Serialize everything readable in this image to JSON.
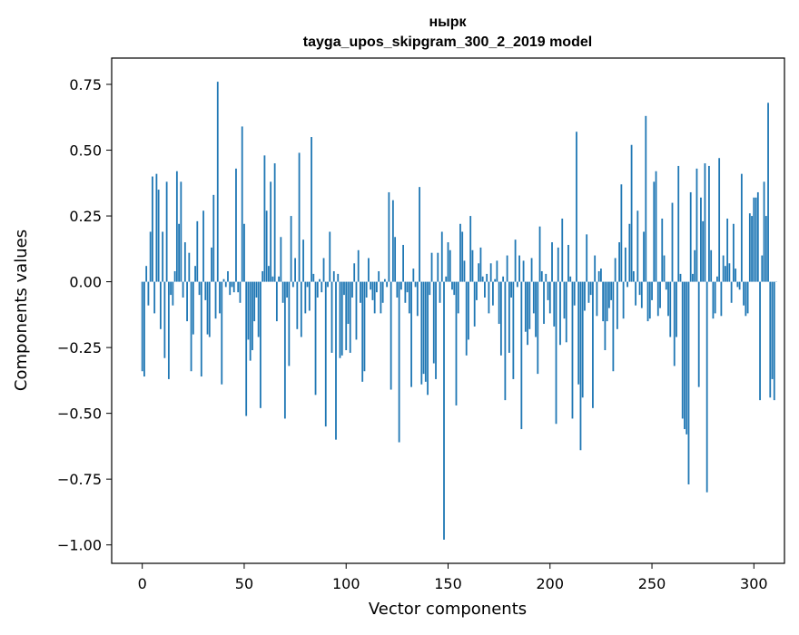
{
  "chart_data": {
    "type": "bar",
    "title": "ныркtayga_upos_skipgram_300_2_2019 model",
    "title_lines": [
      "нырк",
      "tayga_upos_skipgram_300_2_2019 model"
    ],
    "xlabel": "Vector components",
    "ylabel": "Components values",
    "xlim": [
      -15,
      315
    ],
    "ylim": [
      -1.07,
      0.85
    ],
    "x_ticks": [
      0,
      50,
      100,
      150,
      200,
      250,
      300
    ],
    "x_tick_labels": [
      "0",
      "50",
      "100",
      "150",
      "200",
      "250",
      "300"
    ],
    "y_ticks": [
      -1.0,
      -0.75,
      -0.5,
      -0.25,
      0.0,
      0.25,
      0.5,
      0.75
    ],
    "y_tick_labels": [
      "−1.00",
      "−0.75",
      "−0.50",
      "−0.25",
      "0.00",
      "0.25",
      "0.50",
      "0.75"
    ],
    "bar_color": "#1f77b4",
    "grid": false,
    "legend": "none",
    "values": [
      -0.34,
      -0.36,
      0.06,
      -0.09,
      0.19,
      0.4,
      -0.12,
      0.41,
      0.35,
      -0.18,
      0.19,
      -0.29,
      0.38,
      -0.37,
      -0.05,
      -0.09,
      0.04,
      0.42,
      0.22,
      0.38,
      -0.06,
      0.15,
      -0.15,
      0.11,
      -0.34,
      -0.2,
      0.06,
      0.23,
      -0.05,
      -0.36,
      0.27,
      -0.07,
      -0.2,
      -0.21,
      0.13,
      0.33,
      -0.14,
      0.76,
      -0.12,
      -0.39,
      0.01,
      -0.02,
      0.04,
      -0.05,
      -0.02,
      -0.04,
      0.43,
      -0.04,
      -0.08,
      0.59,
      0.22,
      -0.51,
      -0.22,
      -0.3,
      -0.26,
      -0.15,
      -0.06,
      -0.21,
      -0.48,
      0.04,
      0.48,
      0.27,
      0.06,
      0.38,
      0.02,
      0.45,
      -0.15,
      0.02,
      0.17,
      -0.08,
      -0.52,
      -0.06,
      -0.32,
      0.25,
      -0.02,
      0.09,
      -0.18,
      0.49,
      -0.21,
      0.16,
      -0.12,
      -0.02,
      -0.11,
      0.55,
      0.03,
      -0.43,
      -0.06,
      0.01,
      -0.04,
      0.09,
      -0.55,
      -0.02,
      0.19,
      -0.27,
      0.04,
      -0.6,
      0.03,
      -0.29,
      -0.28,
      -0.05,
      -0.26,
      -0.16,
      -0.27,
      -0.06,
      0.07,
      -0.22,
      0.12,
      -0.08,
      -0.38,
      -0.34,
      -0.06,
      0.09,
      -0.03,
      -0.07,
      -0.12,
      -0.04,
      0.04,
      -0.12,
      -0.08,
      0.01,
      -0.02,
      0.34,
      -0.41,
      0.31,
      0.17,
      -0.06,
      -0.61,
      -0.03,
      0.14,
      -0.08,
      -0.04,
      -0.12,
      -0.4,
      0.05,
      -0.02,
      -0.13,
      0.36,
      -0.39,
      -0.35,
      -0.38,
      -0.43,
      -0.05,
      0.11,
      -0.31,
      -0.37,
      0.11,
      -0.08,
      0.19,
      -0.98,
      0.02,
      0.15,
      0.12,
      -0.03,
      -0.05,
      -0.47,
      -0.12,
      0.22,
      0.19,
      0.08,
      -0.28,
      -0.22,
      0.25,
      0.12,
      -0.17,
      -0.07,
      0.07,
      0.13,
      0.02,
      -0.06,
      0.03,
      -0.12,
      0.07,
      -0.09,
      0.01,
      0.08,
      -0.16,
      -0.28,
      0.02,
      -0.45,
      0.1,
      -0.27,
      -0.06,
      -0.37,
      0.16,
      -0.02,
      0.1,
      -0.56,
      0.08,
      -0.19,
      -0.24,
      -0.18,
      0.09,
      -0.12,
      -0.21,
      -0.35,
      0.21,
      0.04,
      -0.16,
      0.03,
      -0.07,
      -0.12,
      0.15,
      -0.17,
      -0.54,
      0.13,
      -0.24,
      0.24,
      -0.14,
      -0.23,
      0.14,
      0.02,
      -0.52,
      -0.09,
      0.57,
      -0.39,
      -0.64,
      -0.44,
      -0.11,
      0.18,
      -0.08,
      -0.05,
      -0.48,
      0.1,
      -0.13,
      0.04,
      0.05,
      -0.15,
      -0.26,
      -0.15,
      -0.1,
      -0.07,
      -0.34,
      0.09,
      -0.18,
      0.15,
      0.37,
      -0.14,
      0.13,
      -0.02,
      0.22,
      0.52,
      0.04,
      -0.09,
      0.27,
      -0.05,
      -0.1,
      0.19,
      0.63,
      -0.15,
      -0.14,
      -0.07,
      0.38,
      0.42,
      -0.13,
      -0.1,
      0.24,
      0.1,
      -0.03,
      -0.13,
      -0.21,
      0.3,
      -0.32,
      -0.21,
      0.44,
      0.03,
      -0.52,
      -0.56,
      -0.58,
      -0.77,
      0.34,
      0.03,
      0.12,
      0.43,
      -0.4,
      0.32,
      0.23,
      0.45,
      -0.8,
      0.44,
      0.12,
      -0.14,
      -0.12,
      0.02,
      0.47,
      -0.13,
      0.1,
      0.06,
      0.24,
      0.07,
      -0.08,
      0.22,
      0.05,
      -0.02,
      -0.03,
      0.41,
      -0.09,
      -0.13,
      -0.12,
      0.26,
      0.25,
      0.32,
      0.32,
      0.34,
      -0.45,
      0.1,
      0.38,
      0.25,
      0.68,
      -0.44,
      -0.37,
      -0.45,
      0.0
    ]
  }
}
